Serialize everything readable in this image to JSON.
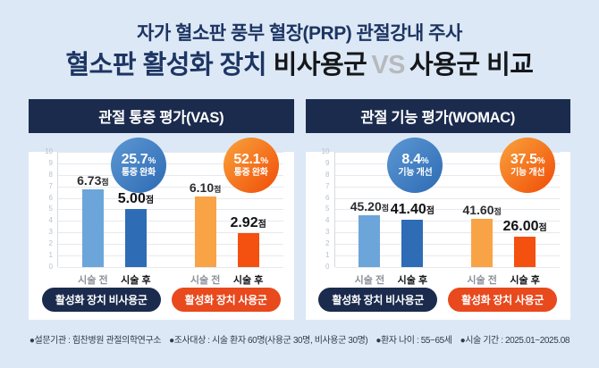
{
  "page": {
    "background": "#dce8f5"
  },
  "header": {
    "title_line1": "자가 혈소판 풍부 혈장(PRP) 관절강내 주사",
    "title_line2_part1": "혈소판 활성화 장치",
    "title_line2_part2": "비사용군",
    "title_line2_vs": "VS",
    "title_line2_part3": "사용군 비교",
    "accent_navy": "#1d3563",
    "vs_gray": "#b7b9bc"
  },
  "chart_data": [
    {
      "type": "bar",
      "title": "관절 통증 평가(VAS)",
      "ylim": [
        0,
        10
      ],
      "yticks": [
        10,
        9,
        8,
        7,
        6,
        5,
        4,
        3,
        2,
        1,
        0
      ],
      "grid": true,
      "legend_position": "bottom",
      "groups": [
        {
          "badge": {
            "percent": "25.7",
            "percent_sign": "%",
            "caption": "통증 완화",
            "style": "blue",
            "color": "#3a78bf"
          },
          "bars": [
            {
              "x": "시술 전",
              "value": 6.73,
              "label": "6.73",
              "unit": "점",
              "color": "#6ca5d9",
              "emphasis": false
            },
            {
              "x": "시술 후",
              "value": 5.0,
              "label": "5.00",
              "unit": "점",
              "color": "#2e6cb5",
              "emphasis": true
            }
          ]
        },
        {
          "badge": {
            "percent": "52.1",
            "percent_sign": "%",
            "caption": "통증 완화",
            "style": "orange",
            "color": "#f26211"
          },
          "bars": [
            {
              "x": "시술 전",
              "value": 6.1,
              "label": "6.10",
              "unit": "점",
              "color": "#f9a347",
              "emphasis": false
            },
            {
              "x": "시술 후",
              "value": 2.92,
              "label": "2.92",
              "unit": "점",
              "color": "#f4500f",
              "emphasis": true
            }
          ]
        }
      ],
      "legend": [
        {
          "label": "활성화 장치 비사용군",
          "color": "#1b2b4d"
        },
        {
          "label": "활성화 장치 사용군",
          "color": "#e8491d"
        }
      ]
    },
    {
      "type": "bar",
      "title": "관절 기능 평가(WOMAC)",
      "ylim": [
        0,
        10
      ],
      "yticks": [
        10,
        9,
        8,
        7,
        6,
        5,
        4,
        3,
        2,
        1,
        0
      ],
      "grid": true,
      "legend_position": "bottom",
      "groups": [
        {
          "badge": {
            "percent": "8.4",
            "percent_sign": "%",
            "caption": "기능 개선",
            "style": "blue",
            "color": "#3a78bf"
          },
          "bars": [
            {
              "x": "시술 전",
              "value": 45.2,
              "plot": 4.52,
              "label": "45.20",
              "unit": "점",
              "color": "#6ca5d9",
              "emphasis": false
            },
            {
              "x": "시술 후",
              "value": 41.4,
              "plot": 4.14,
              "label": "41.40",
              "unit": "점",
              "color": "#2e6cb5",
              "emphasis": true
            }
          ]
        },
        {
          "badge": {
            "percent": "37.5",
            "percent_sign": "%",
            "caption": "기능 개선",
            "style": "orange",
            "color": "#f26211"
          },
          "bars": [
            {
              "x": "시술 전",
              "value": 41.6,
              "plot": 4.16,
              "label": "41.60",
              "unit": "점",
              "color": "#f9a347",
              "emphasis": false
            },
            {
              "x": "시술 후",
              "value": 26.0,
              "plot": 2.6,
              "label": "26.00",
              "unit": "점",
              "color": "#f4500f",
              "emphasis": true
            }
          ]
        }
      ],
      "legend": [
        {
          "label": "활성화 장치 비사용군",
          "color": "#1b2b4d"
        },
        {
          "label": "활성화 장치 사용군",
          "color": "#e8491d"
        }
      ]
    }
  ],
  "footer": {
    "items": [
      "●설문기관 : 힘찬병원 관절의학연구소",
      "●조사대상 : 시술 환자 60명(사용군 30명, 비사용군 30명)",
      "●환자 나이 : 55~65세",
      "●시술 기간 : 2025.01~2025.08"
    ]
  }
}
